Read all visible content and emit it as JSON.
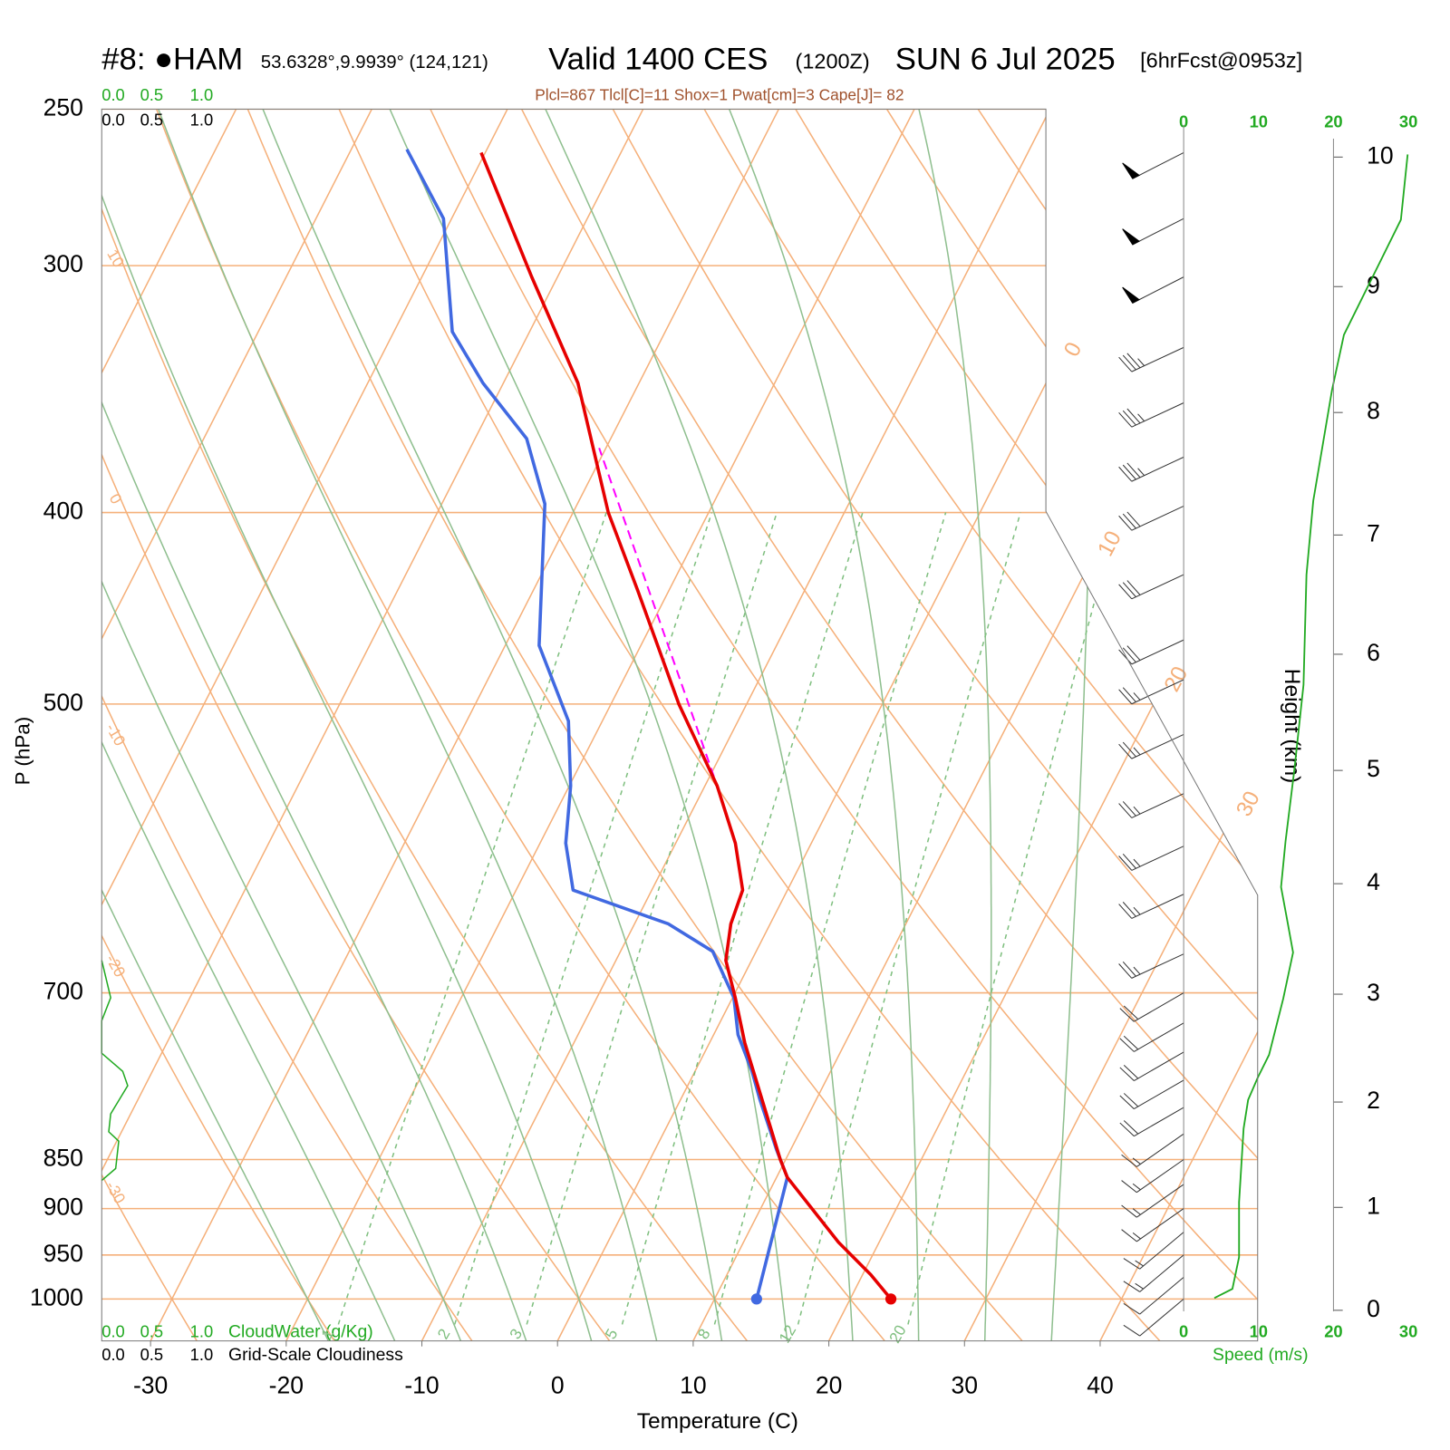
{
  "chart_data": {
    "type": "skewt",
    "title": {
      "station": "#8: ●HAM",
      "location": "53.6328°,9.9939° (124,121)",
      "valid": "Valid 1400 CES",
      "utc": "(1200Z)",
      "date": "SUN 6 Jul 2025",
      "forecast": "[6hrFcst@0953z]"
    },
    "indices": "Plcl=867 Tlcl[C]=11 Shox=1 Pwat[cm]=3 Cape[J]= 82",
    "xlabel": "Temperature (C)",
    "ylabel": "P (hPa)",
    "log_y": true,
    "ylim": [
      1050,
      250
    ],
    "yticks": [
      250,
      300,
      400,
      500,
      700,
      850,
      900,
      950,
      1000
    ],
    "xlim": [
      -33.6,
      36
    ],
    "xticks": [
      -30,
      -20,
      -10,
      0,
      10,
      20,
      30,
      40
    ],
    "isotherms": [
      -110,
      -100,
      -90,
      -80,
      -70,
      -60,
      -50,
      -40,
      -30,
      -20,
      -10,
      0,
      10,
      20,
      30,
      40
    ],
    "isotherm_labels": [
      0,
      10,
      20,
      30
    ],
    "dry_adiabats": [
      -30,
      -20,
      -10,
      0,
      10,
      20,
      30,
      40,
      50,
      60,
      70,
      80,
      90,
      100,
      110,
      120,
      130,
      140,
      150,
      160,
      170
    ],
    "dry_adiabat_labels": [
      10,
      0,
      -10,
      -20,
      -30
    ],
    "moist_adiabats": [
      -20,
      -15,
      -10,
      -5,
      0,
      5,
      10,
      15,
      20,
      25,
      30,
      35
    ],
    "mixing_ratios": [
      1,
      2,
      3,
      5,
      8,
      12,
      20
    ],
    "temperature": {
      "color": "#e60000",
      "pressure": [
        1000,
        972,
        936,
        868,
        850,
        742,
        704,
        674,
        646,
        621,
        588,
        550,
        500,
        438,
        400,
        344,
        304,
        263
      ],
      "values": [
        23.0,
        20.6,
        17.0,
        10.8,
        9.6,
        2.6,
        0.2,
        -1.9,
        -2.9,
        -3.3,
        -5.6,
        -9.1,
        -15.0,
        -22.3,
        -27.4,
        -34.5,
        -41.9,
        -50.3
      ]
    },
    "dewpoint": {
      "color": "#4169e1",
      "pressure": [
        1000,
        868,
        841,
        792,
        767,
        735,
        704,
        667,
        646,
        621,
        588,
        550,
        510,
        467,
        396,
        367,
        344,
        324,
        284,
        262
      ],
      "values": [
        13.1,
        10.8,
        9.0,
        5.8,
        4.2,
        1.8,
        0.1,
        -3.2,
        -7.5,
        -15.8,
        -18.1,
        -19.9,
        -22.5,
        -27.5,
        -32.4,
        -36.2,
        -41.5,
        -45.7,
        -50.6,
        -55.9
      ]
    },
    "parcel": {
      "color": "#ff00ff",
      "pressure": [
        553,
        371
      ],
      "values": [
        -8.8,
        -30.5
      ]
    },
    "wind": {
      "color": "#333333",
      "pressure": [
        263,
        284,
        304,
        330,
        352,
        375,
        397,
        430,
        464,
        486,
        518,
        555,
        590,
        624,
        669,
        700,
        725,
        750,
        775,
        800,
        825,
        850,
        875,
        900,
        925,
        950,
        975,
        1000
      ],
      "speed": [
        50,
        50,
        50,
        35,
        35,
        35,
        30,
        30,
        30,
        25,
        25,
        25,
        25,
        25,
        25,
        20,
        20,
        20,
        20,
        20,
        15,
        15,
        15,
        15,
        15,
        15,
        10,
        10
      ],
      "direction": [
        243,
        243,
        243,
        245,
        245,
        245,
        245,
        245,
        245,
        245,
        245,
        245,
        245,
        245,
        245,
        240,
        240,
        240,
        240,
        240,
        235,
        235,
        235,
        235,
        230,
        230,
        230,
        230
      ]
    },
    "speed_profile": {
      "color": "#22aa22",
      "label": "Speed (m/s)",
      "xlim": [
        0,
        30
      ],
      "xticks": [
        0,
        10,
        20,
        30
      ],
      "height": [
        0.12,
        0.21,
        0.52,
        1.05,
        1.75,
        2.02,
        2.23,
        2.44,
        2.96,
        3.38,
        3.68,
        3.97,
        4.38,
        5.02,
        5.74,
        6.67,
        7.28,
        8.18,
        8.62,
        9.52,
        10.02
      ],
      "values": [
        4.1,
        6.5,
        7.4,
        7.4,
        8.0,
        8.6,
        9.9,
        11.4,
        13.3,
        14.6,
        13.8,
        13.0,
        13.6,
        14.8,
        16.0,
        16.4,
        17.3,
        19.8,
        21.4,
        29.0,
        29.9
      ]
    },
    "height_axis": {
      "label": "Height (km)",
      "ticks": [
        0,
        1,
        2,
        3,
        4,
        5,
        6,
        7,
        8,
        9,
        10
      ]
    },
    "cloud_water": {
      "label": "CloudWater (g/Kg)",
      "color": "#22aa22",
      "ticks": [
        {
          "value": 0,
          "label": "0.0"
        },
        {
          "value": 0.5,
          "label": "0.5"
        },
        {
          "value": 1,
          "label": "1.0"
        }
      ],
      "pressure": [
        674,
        704,
        723,
        751,
        767,
        780,
        806,
        823,
        832,
        859,
        871
      ],
      "values": [
        0,
        0.09,
        0,
        0,
        0.21,
        0.26,
        0.09,
        0.07,
        0.17,
        0.14,
        0
      ]
    },
    "cloudiness": {
      "label": "Grid-Scale Cloudiness",
      "ticks": [
        {
          "value": 0,
          "label": "0.0"
        },
        {
          "value": 0.5,
          "label": "0.5"
        },
        {
          "value": 1,
          "label": "1.0"
        }
      ]
    }
  }
}
